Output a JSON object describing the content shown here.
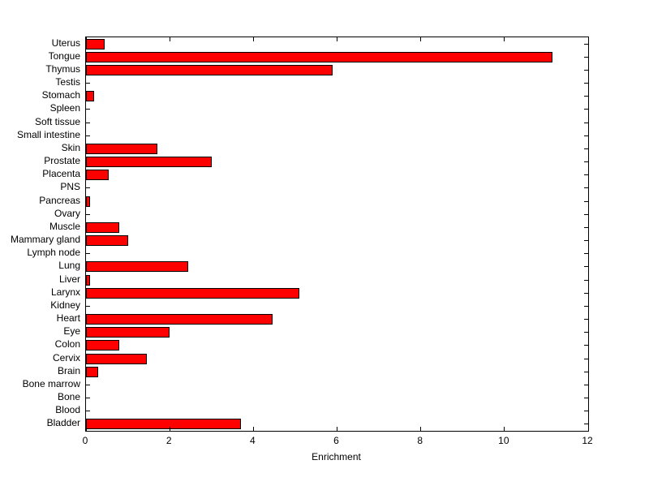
{
  "chart_data": {
    "type": "bar",
    "orientation": "horizontal",
    "title": "",
    "xlabel": "Enrichment",
    "ylabel": "",
    "xlim": [
      0,
      12
    ],
    "xticks": [
      0,
      2,
      4,
      6,
      8,
      10,
      12
    ],
    "grid": false,
    "bar_color": "#ff0000",
    "bar_edge_color": "#000000",
    "categories": [
      "Uterus",
      "Tongue",
      "Thymus",
      "Testis",
      "Stomach",
      "Spleen",
      "Soft tissue",
      "Small intestine",
      "Skin",
      "Prostate",
      "Placenta",
      "PNS",
      "Pancreas",
      "Ovary",
      "Muscle",
      "Mammary gland",
      "Lymph node",
      "Lung",
      "Liver",
      "Larynx",
      "Kidney",
      "Heart",
      "Eye",
      "Colon",
      "Cervix",
      "Brain",
      "Bone marrow",
      "Bone",
      "Blood",
      "Bladder"
    ],
    "values": [
      0.45,
      11.15,
      5.9,
      0,
      0.2,
      0,
      0,
      0,
      1.7,
      3.0,
      0.55,
      0,
      0.1,
      0,
      0.8,
      1.0,
      0,
      2.45,
      0.1,
      5.1,
      0,
      4.45,
      2.0,
      0.8,
      1.45,
      0.3,
      0,
      0,
      0,
      3.7
    ]
  }
}
